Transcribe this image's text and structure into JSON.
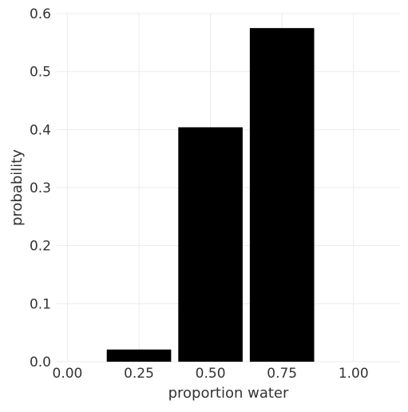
{
  "chart_data": {
    "type": "bar",
    "title": "",
    "xlabel": "proportion water",
    "ylabel": "probability",
    "x": [
      0.0,
      0.25,
      0.5,
      0.75,
      1.0
    ],
    "values": [
      0.0,
      0.021,
      0.404,
      0.575,
      0.0
    ],
    "x_tick_labels": [
      "0.00",
      "0.25",
      "0.50",
      "0.75",
      "1.00"
    ],
    "y_ticks": [
      0,
      0.1,
      0.2,
      0.3,
      0.4,
      0.5,
      0.6
    ],
    "y_tick_labels": [
      "0.0",
      "0.1",
      "0.2",
      "0.3",
      "0.4",
      "0.5",
      "0.6"
    ],
    "xlim": [
      -0.0375,
      1.1625
    ],
    "ylim": [
      0,
      0.6
    ],
    "grid": true,
    "bar_width_fraction": 0.9,
    "colors": {
      "bar": "#000000",
      "grid": "#ebebeb",
      "text": "#333333"
    }
  }
}
